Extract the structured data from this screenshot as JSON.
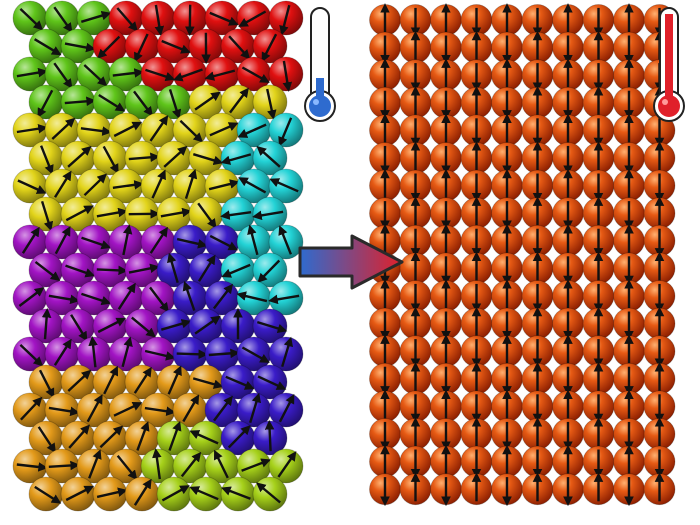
{
  "diagram": {
    "left_panel": {
      "state": "disordered",
      "thermometer": "cold",
      "domains": [
        {
          "name": "red",
          "color": "#e01010"
        },
        {
          "name": "green",
          "color": "#5fc51a"
        },
        {
          "name": "yellow",
          "color": "#e2d41a"
        },
        {
          "name": "cyan",
          "color": "#23d3d6"
        },
        {
          "name": "purple",
          "color": "#a214c4"
        },
        {
          "name": "blue",
          "color": "#3a1cc8"
        },
        {
          "name": "orange",
          "color": "#e39a1a"
        },
        {
          "name": "lime",
          "color": "#a6d11a"
        }
      ]
    },
    "right_panel": {
      "state": "ordered-antiparallel",
      "thermometer": "hot",
      "sphere_color": "#d93c08"
    },
    "arrow": {
      "start_color": "#2e6bcf",
      "end_color": "#e0202a"
    },
    "icons": [
      "thermometer-cold-icon",
      "thermometer-hot-icon",
      "transition-arrow-icon",
      "spin-arrow-icon"
    ]
  }
}
